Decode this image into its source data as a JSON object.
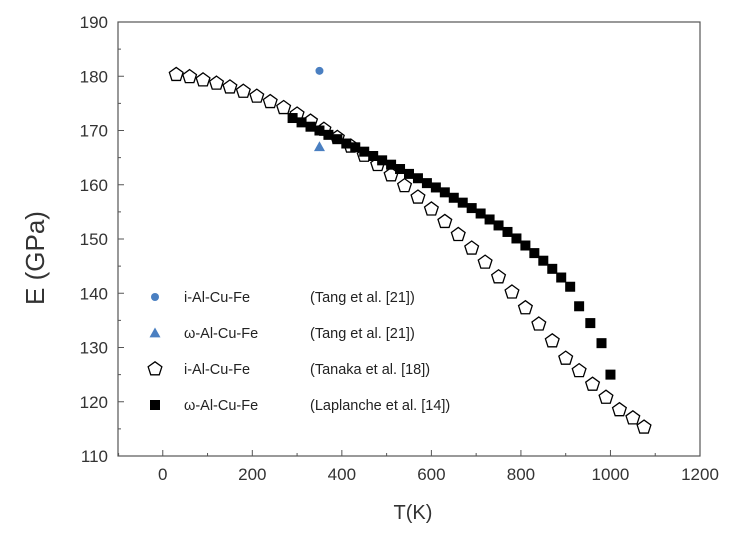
{
  "chart_data": {
    "type": "scatter",
    "title": "",
    "xlabel": "T(K)",
    "ylabel": "E (GPa)",
    "xlim": [
      -100,
      1200
    ],
    "ylim": [
      110,
      190
    ],
    "xticks": [
      0,
      200,
      400,
      600,
      800,
      1000,
      1200
    ],
    "yticks": [
      110,
      120,
      130,
      140,
      150,
      160,
      170,
      180,
      190
    ],
    "grid": false,
    "legend_position": "bottom-left",
    "series": [
      {
        "name": "i-Al-Cu-Fe",
        "source": "(Tang et al. [21])",
        "marker": "circle",
        "color": "#4a7fc1",
        "x": [
          350
        ],
        "y": [
          181
        ]
      },
      {
        "name": "ω-Al-Cu-Fe",
        "source": "(Tang et al. [21])",
        "marker": "triangle",
        "color": "#4a7fc1",
        "x": [
          350
        ],
        "y": [
          167
        ]
      },
      {
        "name": "i-Al-Cu-Fe",
        "source": "(Tanaka et al. [18])",
        "marker": "pentagon-open",
        "color": "#000000",
        "x": [
          30,
          60,
          90,
          120,
          150,
          180,
          210,
          240,
          270,
          300,
          330,
          360,
          390,
          420,
          450,
          480,
          510,
          540,
          570,
          600,
          630,
          660,
          690,
          720,
          750,
          780,
          810,
          840,
          870,
          900,
          930,
          960,
          990,
          1020,
          1050,
          1075
        ],
        "y": [
          180.3,
          179.9,
          179.3,
          178.7,
          178.0,
          177.2,
          176.3,
          175.3,
          174.2,
          173.0,
          171.7,
          170.2,
          168.7,
          167.1,
          165.4,
          163.7,
          161.8,
          159.8,
          157.7,
          155.5,
          153.2,
          150.8,
          148.3,
          145.7,
          143.0,
          140.2,
          137.3,
          134.3,
          131.2,
          128.0,
          125.7,
          123.2,
          120.8,
          118.5,
          117.0,
          115.3
        ]
      },
      {
        "name": "ω-Al-Cu-Fe",
        "source": "(Laplanche et al. [14])",
        "marker": "square",
        "color": "#000000",
        "x": [
          290,
          310,
          330,
          350,
          370,
          390,
          410,
          430,
          450,
          470,
          490,
          510,
          530,
          550,
          570,
          590,
          610,
          630,
          650,
          670,
          690,
          710,
          730,
          750,
          770,
          790,
          810,
          830,
          850,
          870,
          890,
          910,
          930,
          955,
          980,
          1000
        ],
        "y": [
          172.3,
          171.5,
          170.7,
          170.0,
          169.2,
          168.4,
          167.6,
          166.9,
          166.1,
          165.3,
          164.5,
          163.7,
          162.9,
          162.0,
          161.2,
          160.3,
          159.5,
          158.6,
          157.6,
          156.7,
          155.7,
          154.7,
          153.6,
          152.5,
          151.3,
          150.1,
          148.8,
          147.4,
          146.0,
          144.5,
          142.9,
          141.2,
          137.6,
          134.5,
          130.8,
          125.0
        ]
      }
    ]
  }
}
